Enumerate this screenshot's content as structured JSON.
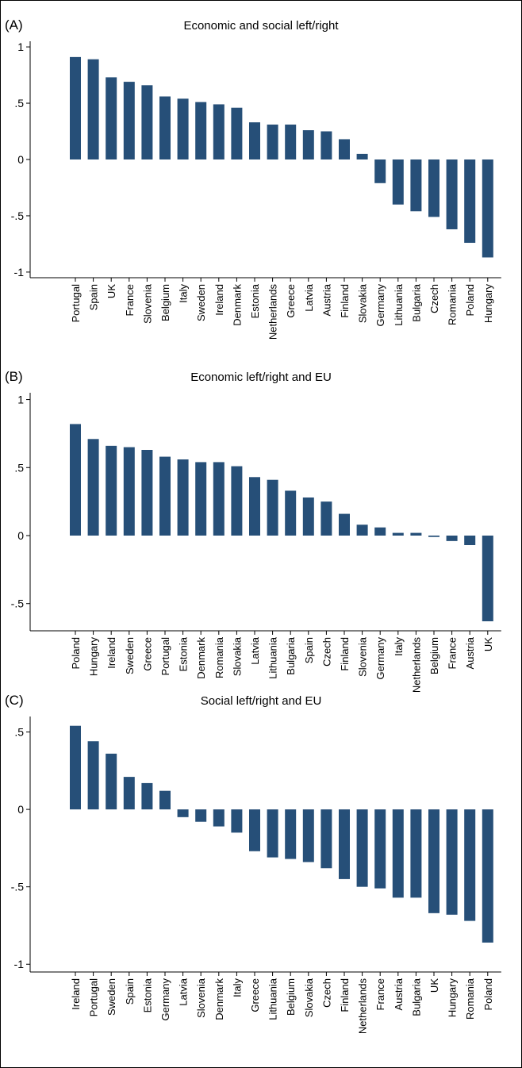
{
  "figure": {
    "bar_color": "#264f78",
    "panels": [
      {
        "label": "(A)",
        "title": "Economic and social left/right"
      },
      {
        "label": "(B)",
        "title": "Economic left/right and EU"
      },
      {
        "label": "(C)",
        "title": "Social left/right and EU"
      }
    ]
  },
  "chart_data": [
    {
      "type": "bar",
      "title": "Economic and social left/right",
      "categories": [
        "Portugal",
        "Spain",
        "UK",
        "France",
        "Slovenia",
        "Belgium",
        "Italy",
        "Sweden",
        "Ireland",
        "Denmark",
        "Estonia",
        "Netherlands",
        "Greece",
        "Latvia",
        "Austria",
        "Finland",
        "Slovakia",
        "Germany",
        "Lithuania",
        "Bulgaria",
        "Czech",
        "Romania",
        "Poland",
        "Hungary"
      ],
      "values": [
        0.91,
        0.89,
        0.73,
        0.69,
        0.66,
        0.56,
        0.54,
        0.51,
        0.49,
        0.46,
        0.33,
        0.31,
        0.31,
        0.26,
        0.25,
        0.18,
        0.05,
        -0.21,
        -0.4,
        -0.46,
        -0.51,
        -0.62,
        -0.74,
        -0.87
      ],
      "yticks": [
        1,
        0.5,
        0,
        -0.5,
        -1
      ],
      "ytick_labels": [
        "1",
        ".5",
        "0",
        "-.5",
        "-1"
      ],
      "ylim": [
        -1.05,
        1.05
      ],
      "grid": false,
      "xlabel": "",
      "ylabel": ""
    },
    {
      "type": "bar",
      "title": "Economic left/right and EU",
      "categories": [
        "Poland",
        "Hungary",
        "Ireland",
        "Sweden",
        "Greece",
        "Portugal",
        "Estonia",
        "Denmark",
        "Romania",
        "Slovakia",
        "Latvia",
        "Lithuania",
        "Bulgaria",
        "Spain",
        "Czech",
        "Finland",
        "Slovenia",
        "Germany",
        "Italy",
        "Netherlands",
        "Belgium",
        "France",
        "Austria",
        "UK"
      ],
      "values": [
        0.82,
        0.71,
        0.66,
        0.65,
        0.63,
        0.58,
        0.56,
        0.54,
        0.54,
        0.51,
        0.43,
        0.41,
        0.33,
        0.28,
        0.25,
        0.16,
        0.08,
        0.06,
        0.02,
        0.02,
        -0.01,
        -0.04,
        -0.07,
        -0.63
      ],
      "yticks": [
        1,
        0.5,
        0,
        -0.5
      ],
      "ytick_labels": [
        "1",
        ".5",
        "0",
        "-.5"
      ],
      "ylim": [
        -0.7,
        1.05
      ],
      "grid": false,
      "xlabel": "",
      "ylabel": ""
    },
    {
      "type": "bar",
      "title": "Social left/right and EU",
      "categories": [
        "Ireland",
        "Portugal",
        "Sweden",
        "Spain",
        "Estonia",
        "Germany",
        "Latvia",
        "Slovenia",
        "Denmark",
        "Italy",
        "Greece",
        "Lithuania",
        "Belgium",
        "Slovakia",
        "Czech",
        "Finland",
        "Netherlands",
        "France",
        "Austria",
        "Bulgaria",
        "UK",
        "Hungary",
        "Romania",
        "Poland"
      ],
      "values": [
        0.54,
        0.44,
        0.36,
        0.21,
        0.17,
        0.12,
        -0.05,
        -0.08,
        -0.11,
        -0.15,
        -0.27,
        -0.31,
        -0.32,
        -0.34,
        -0.38,
        -0.45,
        -0.5,
        -0.51,
        -0.57,
        -0.57,
        -0.67,
        -0.68,
        -0.72,
        -0.86
      ],
      "yticks": [
        0.5,
        0,
        -0.5,
        -1
      ],
      "ytick_labels": [
        ".5",
        "0",
        "-.5",
        "-1"
      ],
      "ylim": [
        -1.05,
        0.6
      ],
      "grid": false,
      "xlabel": "",
      "ylabel": ""
    }
  ]
}
